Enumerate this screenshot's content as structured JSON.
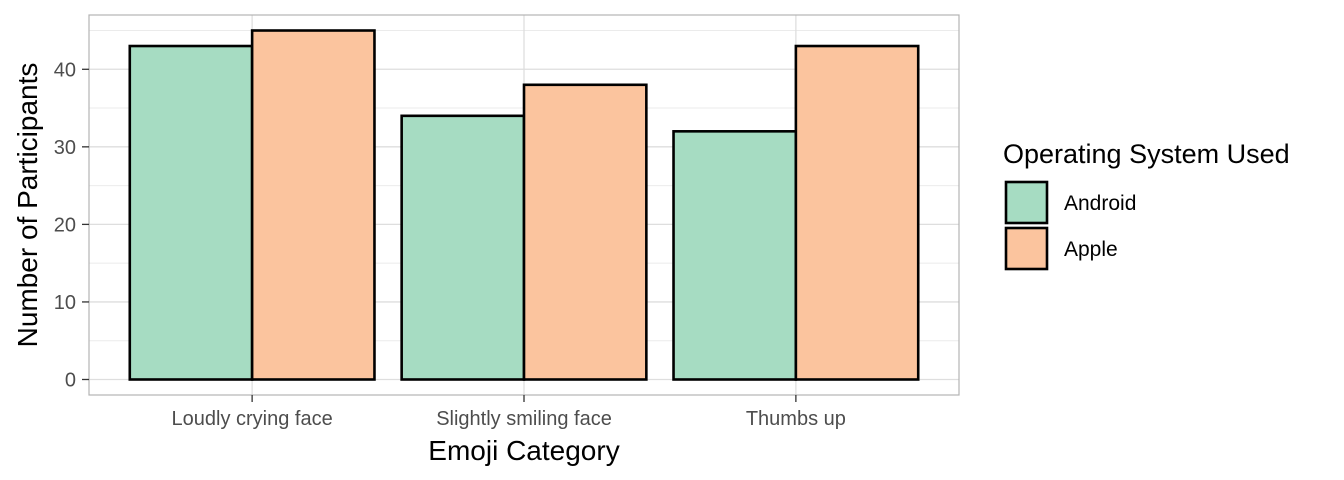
{
  "chart_data": {
    "type": "bar",
    "title": "",
    "xlabel": "Emoji Category",
    "ylabel": "Number of Participants",
    "categories": [
      "Loudly crying face",
      "Slightly smiling face",
      "Thumbs up"
    ],
    "series": [
      {
        "name": "Android",
        "values": [
          43,
          34,
          32
        ],
        "color": "#a6dcc2"
      },
      {
        "name": "Apple",
        "values": [
          45,
          38,
          43
        ],
        "color": "#fbc49e"
      }
    ],
    "ylim": [
      -2,
      47
    ],
    "yticks": [
      0,
      10,
      20,
      30,
      40
    ],
    "grid": true,
    "legend": {
      "title": "Operating System Used",
      "position": "right"
    },
    "bar_outline": "#000000"
  }
}
